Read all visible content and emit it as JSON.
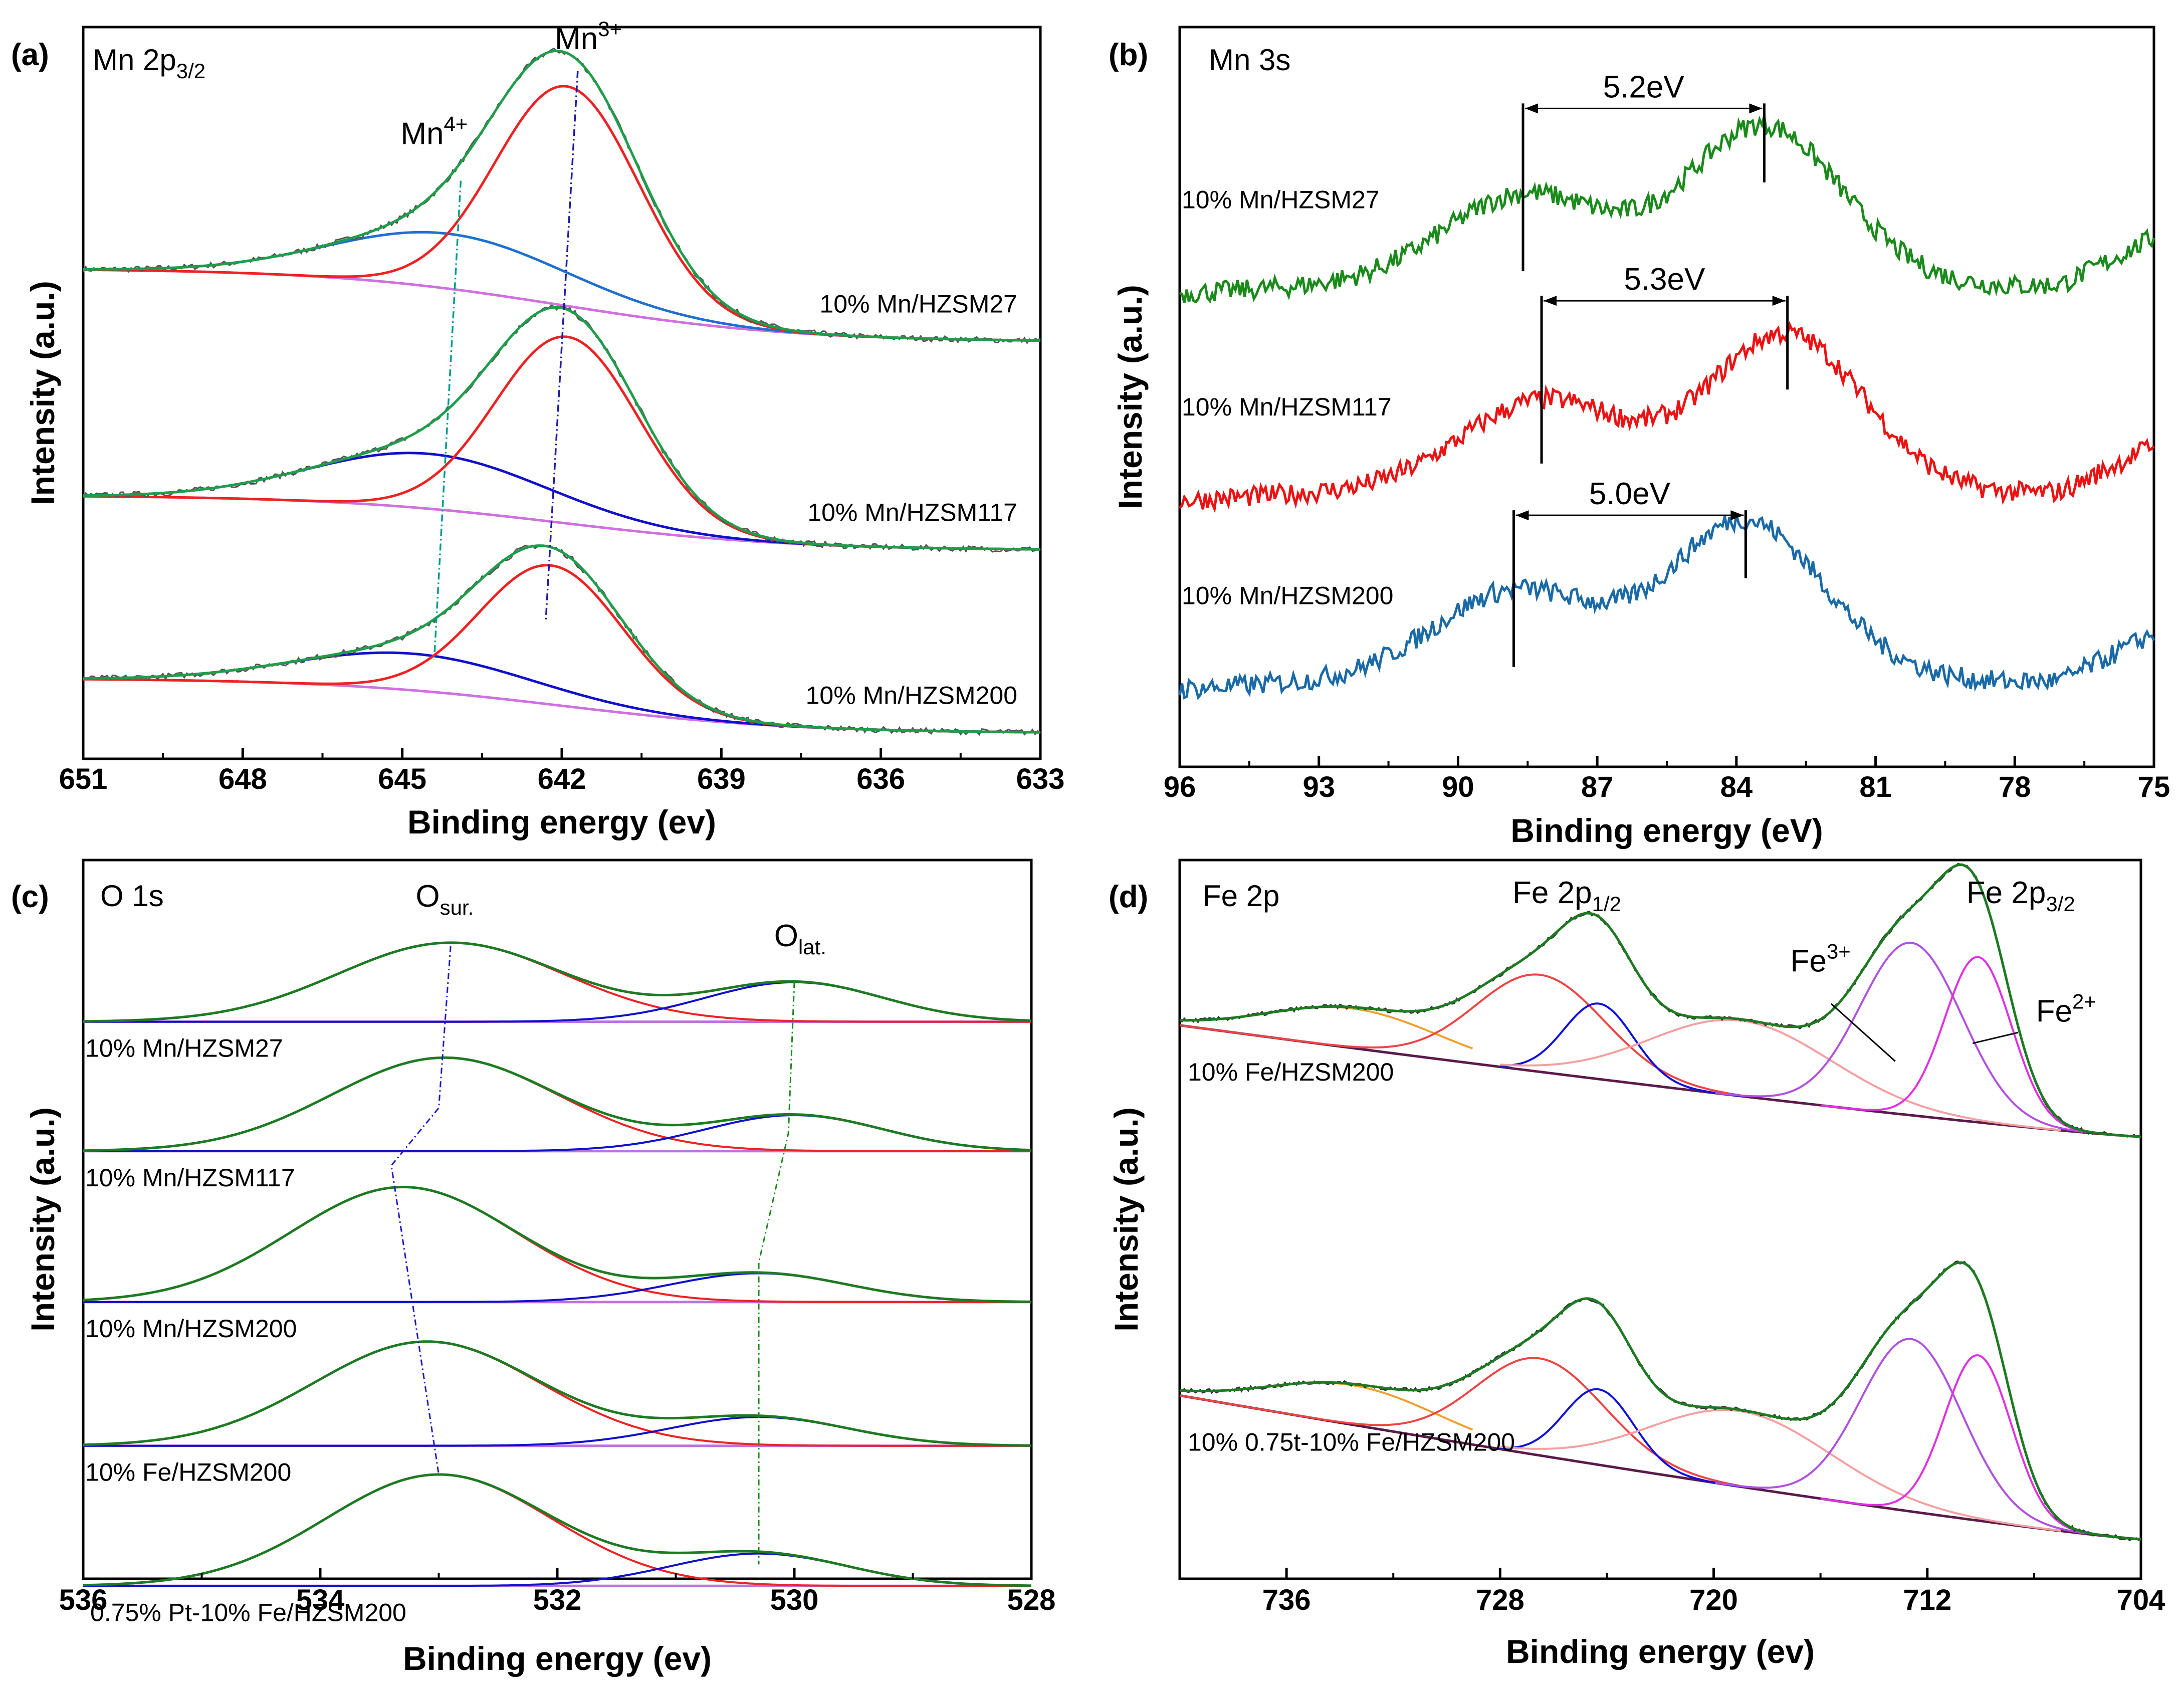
{
  "figure": {
    "type": "xps-multipanel"
  },
  "chart_data": [
    {
      "id": "a",
      "type": "line",
      "panel_letter": "(a)",
      "title": "Mn 2p",
      "title_sub": "3/2",
      "xlabel": "Binding energy (ev)",
      "ylabel": "Intensity (a.u.)",
      "xlim": [
        651,
        633
      ],
      "xticks": [
        651,
        648,
        645,
        642,
        639,
        636,
        633
      ],
      "ylim": [
        0,
        10
      ],
      "annotations": [
        {
          "text": "Mn",
          "sup": "4+",
          "x": 644.4,
          "y": 8.4
        },
        {
          "text": "Mn",
          "sup": "3+",
          "x": 641.5,
          "y": 9.7
        }
      ],
      "guide_lines": [
        {
          "label": "Mn4+",
          "color": "#009b8f",
          "points": [
            [
              643.9,
              7.9
            ],
            [
              644.4,
              1.35
            ]
          ]
        },
        {
          "label": "Mn3+",
          "color": "#1a1aaa",
          "points": [
            [
              641.7,
              9.4
            ],
            [
              642.3,
              1.9
            ]
          ]
        }
      ],
      "fit_colors": {
        "raw": "#555555",
        "envelope": "#1e9e4a",
        "peak_mn3": "#ee2222",
        "peak_mn4_top": "#1e6fd0",
        "peak_mn4": "#1010cc",
        "background": "#d070e0"
      },
      "series": [
        {
          "label": "10% Mn/HZSM27",
          "base_left": 6.7,
          "base_right": 5.7,
          "peaks": [
            {
              "name": "Mn4+",
              "center": 644.1,
              "sigma": 2.2,
              "amp": 0.75
            },
            {
              "name": "Mn3+",
              "center": 641.9,
              "sigma": 1.35,
              "amp": 3.0
            }
          ]
        },
        {
          "label": "10% Mn/HZSM117",
          "base_left": 3.6,
          "base_right": 2.85,
          "peaks": [
            {
              "name": "Mn4+",
              "center": 644.5,
              "sigma": 2.2,
              "amp": 0.75
            },
            {
              "name": "Mn3+",
              "center": 641.9,
              "sigma": 1.35,
              "amp": 2.55
            }
          ]
        },
        {
          "label": "10% Mn/HZSM200",
          "base_left": 1.1,
          "base_right": 0.35,
          "peaks": [
            {
              "name": "Mn4+",
              "center": 644.8,
              "sigma": 2.2,
              "amp": 0.5
            },
            {
              "name": "Mn3+",
              "center": 642.2,
              "sigma": 1.35,
              "amp": 1.9
            }
          ]
        }
      ]
    },
    {
      "id": "b",
      "type": "line",
      "panel_letter": "(b)",
      "title": "Mn 3s",
      "xlabel": "Binding energy (eV)",
      "ylabel": "Intensity (a.u.)",
      "xlim": [
        96,
        75
      ],
      "xticks": [
        96,
        93,
        90,
        87,
        84,
        81,
        78,
        75
      ],
      "ylim": [
        0,
        10
      ],
      "series": [
        {
          "label": "10% Mn/HZSM27",
          "color": "#1a8a1a",
          "offset": 6.4,
          "peak1": 88.6,
          "peak2": 83.4,
          "split": "5.2eV",
          "bar_y": 8.9
        },
        {
          "label": "10% Mn/HZSM117",
          "color": "#ee1111",
          "offset": 3.6,
          "peak1": 88.2,
          "peak2": 82.9,
          "split": "5.3eV",
          "bar_y": 6.3
        },
        {
          "label": "10% Mn/HZSM200",
          "color": "#1a6aa8",
          "offset": 1.05,
          "peak1": 88.8,
          "peak2": 83.8,
          "split": "5.0eV",
          "bar_y": 3.4
        }
      ]
    },
    {
      "id": "c",
      "type": "line",
      "panel_letter": "(c)",
      "title": "O 1s",
      "xlabel": "Binding energy (ev)",
      "ylabel": "Intensity (a.u.)",
      "xlim": [
        536,
        528
      ],
      "xticks": [
        536,
        534,
        532,
        530,
        528
      ],
      "ylim": [
        0,
        10
      ],
      "annotations": [
        {
          "text": "O",
          "sub": "sur.",
          "x": 532.95,
          "y": 9.35
        },
        {
          "text": "O",
          "sub": "lat.",
          "x": 529.95,
          "y": 8.8
        }
      ],
      "guide_lines": [
        {
          "label": "Osur",
          "color": "#1a1acc",
          "points": [
            [
              532.9,
              8.8
            ],
            [
              533.0,
              6.55
            ],
            [
              533.4,
              5.75
            ],
            [
              533.0,
              1.45
            ]
          ]
        },
        {
          "label": "Olat",
          "color": "#1a8a1a",
          "points": [
            [
              530.0,
              8.3
            ],
            [
              530.05,
              6.2
            ],
            [
              530.3,
              4.4
            ],
            [
              530.3,
              0.2
            ]
          ]
        }
      ],
      "fit_colors": {
        "envelope": "#1e7a22",
        "o_sur": "#ee2222",
        "o_lat": "#1010cc",
        "baseline": "#c070e0"
      },
      "series": [
        {
          "label": "10% Mn/HZSM27",
          "base": 7.75,
          "peaks": [
            {
              "center": 532.9,
              "sigma": 0.95,
              "amp": 1.1
            },
            {
              "center": 530.0,
              "sigma": 0.75,
              "amp": 0.55
            }
          ]
        },
        {
          "label": "10% Mn/HZSM117",
          "base": 5.95,
          "peaks": [
            {
              "center": 532.95,
              "sigma": 0.95,
              "amp": 1.3
            },
            {
              "center": 530.0,
              "sigma": 0.75,
              "amp": 0.5
            }
          ]
        },
        {
          "label": "10% Mn/HZSM200",
          "base": 3.85,
          "peaks": [
            {
              "center": 533.3,
              "sigma": 0.95,
              "amp": 1.6
            },
            {
              "center": 530.3,
              "sigma": 0.75,
              "amp": 0.4
            }
          ]
        },
        {
          "label": "10% Fe/HZSM200",
          "base": 1.85,
          "peaks": [
            {
              "center": 533.1,
              "sigma": 0.95,
              "amp": 1.45
            },
            {
              "center": 530.3,
              "sigma": 0.75,
              "amp": 0.4
            }
          ]
        },
        {
          "label": "0.75% Pt-10% Fe/HZSM200",
          "base": -0.1,
          "peaks": [
            {
              "center": 533.0,
              "sigma": 0.95,
              "amp": 1.55
            },
            {
              "center": 530.3,
              "sigma": 0.75,
              "amp": 0.45
            }
          ]
        }
      ]
    },
    {
      "id": "d",
      "type": "line",
      "panel_letter": "(d)",
      "title": "Fe 2p",
      "xlabel": "Binding energy (ev)",
      "ylabel": "Intensity (a.u.)",
      "xlim": [
        740,
        704
      ],
      "xticks": [
        736,
        728,
        720,
        712,
        704
      ],
      "ylim": [
        0,
        10
      ],
      "annotations": [
        {
          "text": "Fe 2p",
          "sub": "1/2",
          "x": 725.5,
          "y": 9.4
        },
        {
          "text": "Fe 2p",
          "sup_like_sub": "3/2",
          "x": 708.5,
          "y": 9.4
        },
        {
          "text": "Fe",
          "sup": "3+",
          "x": 716.0,
          "y": 8.45
        },
        {
          "text": "Fe",
          "sup": "2+",
          "x": 706.8,
          "y": 7.75
        }
      ],
      "fit_colors": {
        "envelope": "#1e7a22",
        "sat_1_2": "#f0a030",
        "p1_2_fe3": "#ee4444",
        "p1_2_fe2": "#1010dd",
        "sat_3_2": "#f4a0a0",
        "p3_2_fe3": "#b050e0",
        "p3_2_fe2": "#e030e0",
        "background": "#5a1a4a"
      },
      "series": [
        {
          "label": "10% Fe/HZSM200",
          "bg_left": 7.7,
          "bg_right": 6.15
        },
        {
          "label": "10% 0.75t-10% Fe/HZSM200",
          "bg_left": 2.55,
          "bg_right": 0.55
        }
      ]
    }
  ]
}
